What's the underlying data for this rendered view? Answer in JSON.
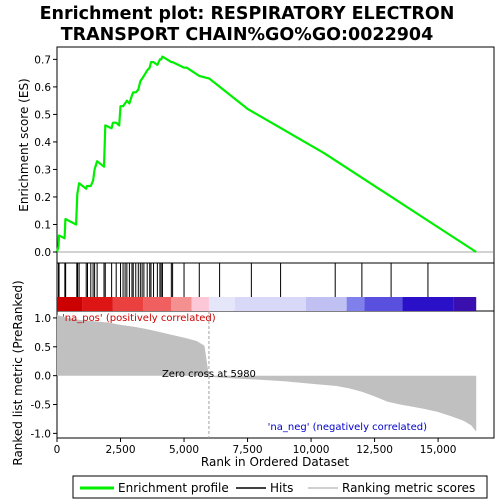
{
  "chart_data": {
    "type": "line",
    "title_line1": "Enrichment plot: RESPIRATORY ELECTRON",
    "title_line2": "TRANSPORT CHAIN%GO%GO:0022904",
    "xlabel": "Rank in Ordered Dataset",
    "ylabel_top": "Enrichment score (ES)",
    "ylabel_bottom": "Ranked list metric (PreRanked)",
    "x_range": [
      0,
      17200
    ],
    "es_ylim": [
      -0.04,
      0.745
    ],
    "metric_ylim": [
      -1.08,
      1.12
    ],
    "x_ticks": [
      0,
      2500,
      5000,
      7500,
      10000,
      12500,
      15000
    ],
    "x_tick_labels": [
      "0",
      "2,500",
      "5,000",
      "7,500",
      "10,000",
      "12,500",
      "15,000"
    ],
    "es_ticks": [
      0.0,
      0.1,
      0.2,
      0.3,
      0.4,
      0.5,
      0.6,
      0.7
    ],
    "es_tick_labels": [
      "0.0",
      "0.1",
      "0.2",
      "0.3",
      "0.4",
      "0.5",
      "0.6",
      "0.7"
    ],
    "metric_ticks": [
      1.0,
      0.5,
      0.0,
      -0.5,
      -1.0
    ],
    "metric_tick_labels": [
      "1.0",
      "0.5",
      "0.0",
      "-0.5",
      "-1.0"
    ],
    "n_genes": 16500,
    "zero_cross": 5980,
    "zero_cross_label": "Zero cross at 5980",
    "pos_label": "'na_pos' (positively correlated)",
    "neg_label": "'na_neg' (negatively correlated)",
    "es_curve": {
      "name": "Enrichment profile",
      "x": [
        0,
        60,
        80,
        300,
        330,
        750,
        800,
        870,
        1150,
        1180,
        1330,
        1420,
        1480,
        1580,
        1850,
        1900,
        2150,
        2200,
        2330,
        2450,
        2500,
        2600,
        2680,
        2750,
        2850,
        2950,
        3000,
        3100,
        3200,
        3280,
        3350,
        3420,
        3550,
        3650,
        3700,
        3800,
        3950,
        4050,
        4100,
        4150,
        4500,
        4550,
        5000,
        5100,
        5600,
        6000,
        7500,
        9000,
        10500,
        12000,
        13000,
        14500,
        15500,
        16500
      ],
      "y": [
        0.0,
        0.02,
        0.06,
        0.05,
        0.12,
        0.1,
        0.21,
        0.25,
        0.23,
        0.24,
        0.24,
        0.26,
        0.3,
        0.33,
        0.31,
        0.46,
        0.45,
        0.47,
        0.47,
        0.46,
        0.53,
        0.53,
        0.54,
        0.55,
        0.54,
        0.57,
        0.58,
        0.58,
        0.59,
        0.62,
        0.63,
        0.64,
        0.66,
        0.67,
        0.69,
        0.69,
        0.68,
        0.7,
        0.7,
        0.71,
        0.69,
        0.69,
        0.67,
        0.67,
        0.64,
        0.63,
        0.52,
        0.44,
        0.36,
        0.27,
        0.21,
        0.12,
        0.06,
        0.0
      ]
    },
    "hits": [
      60,
      80,
      310,
      330,
      340,
      780,
      800,
      810,
      870,
      1150,
      1200,
      1330,
      1420,
      1480,
      1580,
      1850,
      1900,
      2150,
      2330,
      2500,
      2600,
      2680,
      2750,
      2850,
      2950,
      3000,
      3100,
      3200,
      3280,
      3350,
      3420,
      3550,
      3650,
      3700,
      3800,
      3950,
      4050,
      4100,
      4150,
      4500,
      4550,
      5000,
      5600,
      6400,
      7650,
      8800,
      10950,
      12000,
      13150,
      14600
    ],
    "hits_legend": "Hits",
    "metric_legend": "Ranking metric scores",
    "metric_profile": {
      "x": [
        0,
        500,
        1000,
        1500,
        2000,
        2500,
        3000,
        3500,
        4000,
        4500,
        5000,
        5500,
        5800,
        5980,
        6000,
        7000,
        8000,
        9000,
        10000,
        11000,
        11500,
        12000,
        12500,
        13000,
        13500,
        14000,
        14500,
        15000,
        15500,
        16000,
        16300,
        16500
      ],
      "y": [
        1.05,
        0.99,
        0.96,
        0.94,
        0.92,
        0.88,
        0.85,
        0.81,
        0.76,
        0.71,
        0.66,
        0.6,
        0.52,
        0.0,
        -0.02,
        -0.05,
        -0.07,
        -0.1,
        -0.14,
        -0.18,
        -0.22,
        -0.28,
        -0.36,
        -0.45,
        -0.5,
        -0.54,
        -0.58,
        -0.63,
        -0.7,
        -0.78,
        -0.86,
        -0.97
      ]
    },
    "colorbar": [
      {
        "from": 0,
        "to": 1000,
        "color": "#cc0000"
      },
      {
        "from": 1000,
        "to": 2200,
        "color": "#dd1515"
      },
      {
        "from": 2200,
        "to": 3400,
        "color": "#ea4040"
      },
      {
        "from": 3400,
        "to": 4500,
        "color": "#f06060"
      },
      {
        "from": 4500,
        "to": 5300,
        "color": "#f59090"
      },
      {
        "from": 5300,
        "to": 5980,
        "color": "#fcc8d8"
      },
      {
        "from": 5980,
        "to": 7000,
        "color": "#e6e6fb"
      },
      {
        "from": 7000,
        "to": 9800,
        "color": "#d8d8f8"
      },
      {
        "from": 9800,
        "to": 11400,
        "color": "#c0c0f2"
      },
      {
        "from": 11400,
        "to": 12100,
        "color": "#8080ec"
      },
      {
        "from": 12100,
        "to": 13600,
        "color": "#5a50e0"
      },
      {
        "from": 13600,
        "to": 15600,
        "color": "#2a10c8"
      },
      {
        "from": 15600,
        "to": 16500,
        "color": "#3a0fb0"
      }
    ],
    "colors": {
      "es_line": "#00ee00",
      "hit": "#000000",
      "metric_fill": "#c0c0c0",
      "zero_line": "#a0a0a0",
      "pos_text": "#cc0000",
      "neg_text": "#0000cc"
    }
  }
}
